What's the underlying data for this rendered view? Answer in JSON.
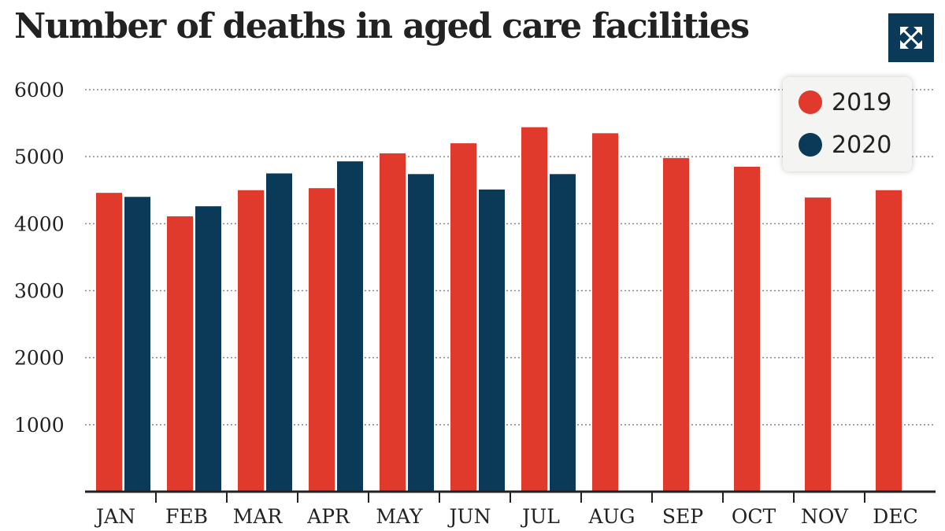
{
  "title": "Number of deaths in aged care facilities",
  "expand_button": {
    "icon": "expand-arrows-icon"
  },
  "colors": {
    "s2019": "#e03a2c",
    "s2020": "#0b3a58",
    "grid": "#888888",
    "axis": "#222222"
  },
  "chart_data": {
    "type": "bar",
    "title": "Number of deaths in aged care facilities",
    "xlabel": "",
    "ylabel": "",
    "categories": [
      "JAN",
      "FEB",
      "MAR",
      "APR",
      "MAY",
      "JUN",
      "JUL",
      "AUG",
      "SEP",
      "OCT",
      "NOV",
      "DEC"
    ],
    "series": [
      {
        "name": "2019",
        "values": [
          4460,
          4110,
          4500,
          4530,
          5050,
          5200,
          5440,
          5350,
          4980,
          4850,
          4390,
          4500
        ]
      },
      {
        "name": "2020",
        "values": [
          4400,
          4260,
          4750,
          4930,
          4740,
          4510,
          4740,
          null,
          null,
          null,
          null,
          null
        ]
      }
    ],
    "ylim": [
      0,
      6000
    ],
    "yticks": [
      1000,
      2000,
      3000,
      4000,
      5000,
      6000
    ],
    "grid": true,
    "legend_position": "top-right"
  }
}
